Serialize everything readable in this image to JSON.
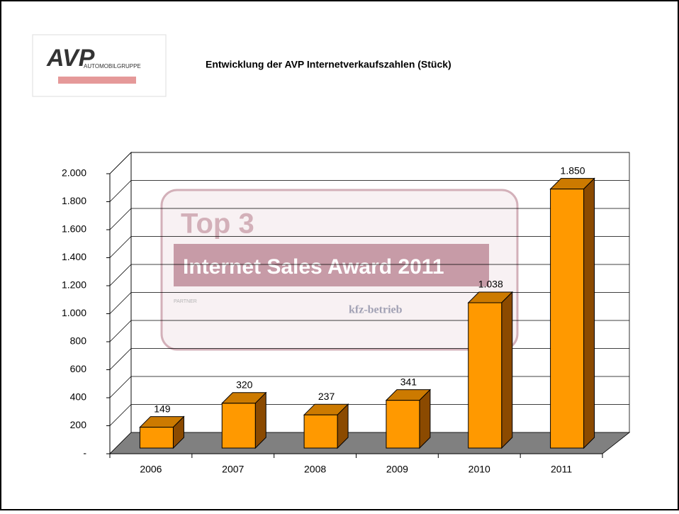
{
  "logo": {
    "name": "AVP",
    "subtitle": "AUTOMOBILGRUPPE"
  },
  "watermark": {
    "headline": "Top 3",
    "award": "Internet Sales Award 2011",
    "brand": "kfz-betrieb",
    "partner": "PARTNER"
  },
  "chart_data": {
    "type": "bar",
    "title": "Entwicklung der AVP Internetverkaufszahlen (Stück)",
    "categories": [
      "2006",
      "2007",
      "2008",
      "2009",
      "2010",
      "2011"
    ],
    "values": [
      149,
      320,
      237,
      341,
      1038,
      1850
    ],
    "value_labels": [
      "149",
      "320",
      "237",
      "341",
      "1.038",
      "1.850"
    ],
    "color": "#ff9900",
    "ylim": [
      0,
      2000
    ],
    "yticks": [
      {
        "value": 0,
        "label": "-"
      },
      200,
      400,
      600,
      800,
      {
        "value": 1000,
        "label": "1.000"
      },
      {
        "value": 1200,
        "label": "1.200"
      },
      {
        "value": 1400,
        "label": "1.400"
      },
      {
        "value": 1600,
        "label": "1.600"
      },
      {
        "value": 1800,
        "label": "1.800"
      },
      {
        "value": 2000,
        "label": "2.000"
      }
    ],
    "grid": true
  }
}
